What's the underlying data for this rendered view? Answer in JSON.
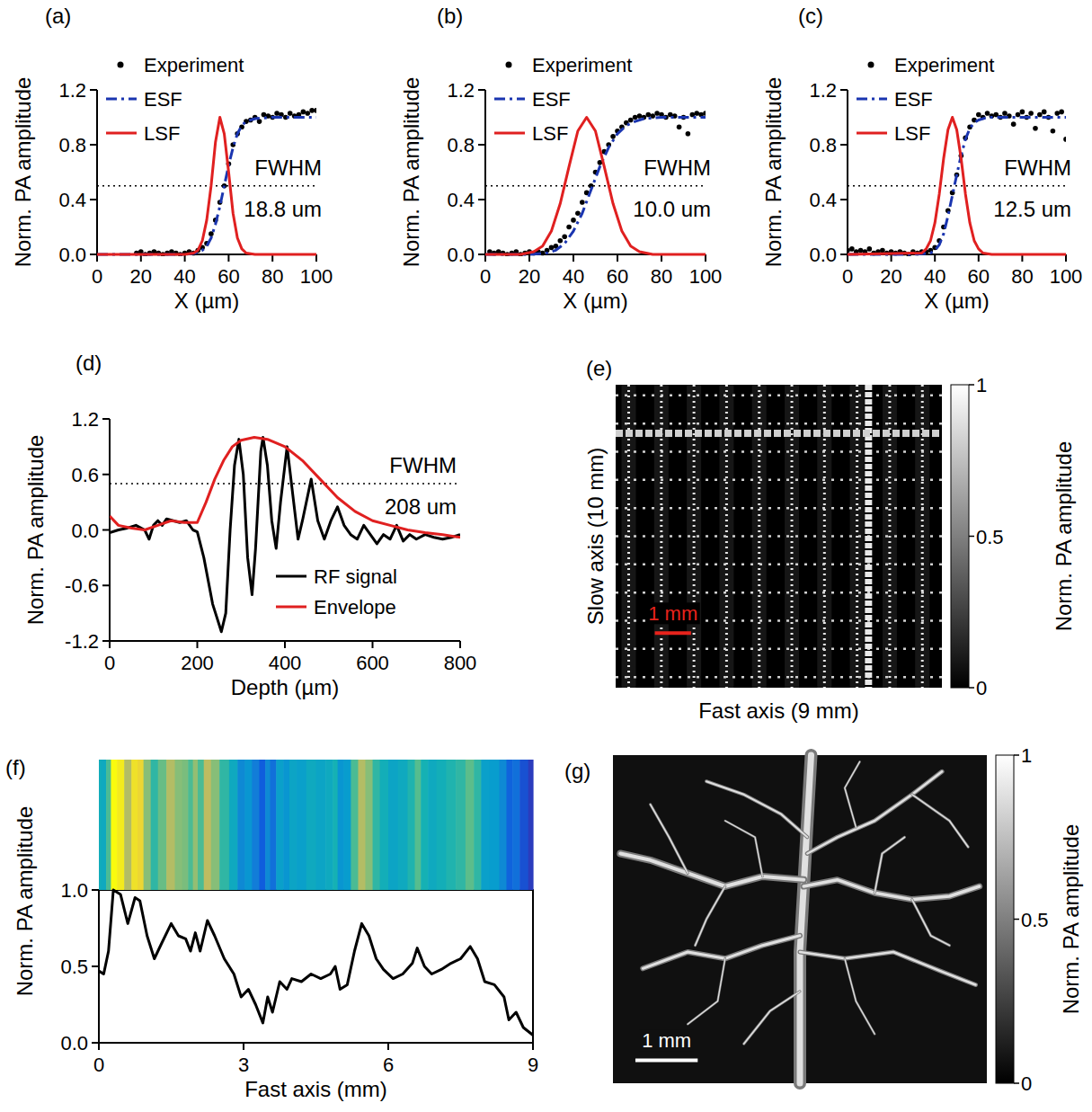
{
  "chart_data": [
    {
      "panel": "(a)",
      "type": "line",
      "x_label": "X (µm)",
      "y_label": "Norm. PA amplitude",
      "xlim": [
        0,
        100
      ],
      "xticks": [
        0,
        20,
        40,
        60,
        80,
        100
      ],
      "ylim": [
        0,
        1.2
      ],
      "yticks": [
        {
          "value": 0,
          "label": "0.0"
        },
        0.4,
        0.8,
        1.2
      ],
      "legend": "upper left",
      "reference_line": 0.5,
      "annotations": [
        "FWHM",
        "18.8 um"
      ],
      "series": [
        {
          "name": "Experiment",
          "type": "scatter",
          "marker": "dot",
          "color": "#000000",
          "x": [
            18,
            20,
            22,
            24,
            26,
            28,
            30,
            32,
            34,
            36,
            38,
            40,
            42,
            44,
            46,
            48,
            50,
            52,
            54,
            56,
            58,
            60,
            62,
            64,
            66,
            68,
            70,
            72,
            74,
            76,
            78,
            80,
            82,
            84,
            86,
            88,
            90,
            92,
            94,
            96,
            98,
            100
          ],
          "values": [
            0.01,
            0.02,
            0.0,
            0.01,
            0.02,
            0.01,
            0.0,
            0.01,
            0.02,
            0.01,
            0.0,
            0.01,
            0.02,
            0.01,
            0.03,
            0.05,
            0.08,
            0.15,
            0.25,
            0.38,
            0.5,
            0.66,
            0.8,
            0.88,
            0.93,
            0.97,
            0.98,
            1.0,
            0.97,
            1.02,
            1.01,
            1.0,
            1.03,
            1.02,
            1.0,
            1.03,
            1.01,
            1.02,
            1.04,
            1.03,
            1.05,
            1.05
          ]
        },
        {
          "name": "ESF",
          "type": "line",
          "line_style": "dashdot",
          "color": "#1a35b0",
          "x": [
            0,
            20,
            40,
            45,
            48,
            50,
            52,
            54,
            56,
            58,
            60,
            62,
            64,
            66,
            68,
            72,
            80,
            100
          ],
          "values": [
            0,
            0,
            0,
            0.01,
            0.03,
            0.06,
            0.12,
            0.22,
            0.35,
            0.5,
            0.65,
            0.78,
            0.88,
            0.94,
            0.97,
            0.99,
            1.0,
            1.0
          ]
        },
        {
          "name": "LSF",
          "type": "line",
          "line_style": "solid",
          "color": "#e02020",
          "x": [
            0,
            40,
            44,
            46,
            48,
            50,
            52,
            54,
            56,
            58,
            60,
            62,
            64,
            66,
            68,
            72,
            100
          ],
          "values": [
            0,
            0,
            0.01,
            0.03,
            0.1,
            0.25,
            0.5,
            0.82,
            1.0,
            0.88,
            0.6,
            0.3,
            0.12,
            0.04,
            0.01,
            0,
            0
          ]
        }
      ]
    },
    {
      "panel": "(b)",
      "type": "line",
      "x_label": "X (µm)",
      "y_label": "Norm. PA amplitude",
      "xlim": [
        0,
        100
      ],
      "xticks": [
        0,
        20,
        40,
        60,
        80,
        100
      ],
      "ylim": [
        0,
        1.2
      ],
      "yticks": [
        {
          "value": 0,
          "label": "0.0"
        },
        0.4,
        0.8,
        1.2
      ],
      "legend": "upper left",
      "reference_line": 0.5,
      "annotations": [
        "FWHM",
        "10.0 um"
      ],
      "series": [
        {
          "name": "Experiment",
          "type": "scatter",
          "marker": "dot",
          "color": "#000000",
          "x": [
            2,
            4,
            6,
            8,
            10,
            12,
            14,
            16,
            18,
            20,
            22,
            24,
            26,
            28,
            30,
            32,
            34,
            36,
            38,
            40,
            42,
            44,
            46,
            48,
            50,
            52,
            54,
            56,
            58,
            60,
            62,
            64,
            66,
            68,
            70,
            72,
            74,
            76,
            78,
            80,
            82,
            84,
            86,
            88,
            90,
            92,
            94,
            96,
            98,
            100
          ],
          "values": [
            0.02,
            0.01,
            0.02,
            0.01,
            0.0,
            0.01,
            0.02,
            0.0,
            0.01,
            0.02,
            0.01,
            0.02,
            0.01,
            0.03,
            0.05,
            0.06,
            0.1,
            0.13,
            0.2,
            0.25,
            0.3,
            0.38,
            0.45,
            0.5,
            0.6,
            0.67,
            0.75,
            0.8,
            0.86,
            0.9,
            0.93,
            0.96,
            0.98,
            1.0,
            1.01,
            1.0,
            1.02,
            1.01,
            1.03,
            1.02,
            1.0,
            1.02,
            1.01,
            0.93,
            1.0,
            0.88,
            1.02,
            1.03,
            1.02,
            1.03
          ]
        },
        {
          "name": "ESF",
          "type": "line",
          "line_style": "dashdot",
          "color": "#1a35b0",
          "x": [
            0,
            20,
            28,
            32,
            36,
            40,
            44,
            48,
            52,
            56,
            60,
            64,
            68,
            72,
            80,
            100
          ],
          "values": [
            0,
            0,
            0.01,
            0.03,
            0.08,
            0.17,
            0.3,
            0.47,
            0.64,
            0.78,
            0.88,
            0.94,
            0.97,
            0.99,
            1.0,
            1.0
          ]
        },
        {
          "name": "LSF",
          "type": "line",
          "line_style": "solid",
          "color": "#e02020",
          "x": [
            0,
            16,
            22,
            26,
            30,
            34,
            38,
            42,
            46,
            50,
            54,
            58,
            62,
            66,
            70,
            76,
            100
          ],
          "values": [
            0,
            0,
            0.02,
            0.06,
            0.17,
            0.37,
            0.64,
            0.9,
            1.0,
            0.9,
            0.64,
            0.37,
            0.17,
            0.06,
            0.02,
            0,
            0
          ]
        }
      ]
    },
    {
      "panel": "(c)",
      "type": "line",
      "x_label": "X (µm)",
      "y_label": "Norm. PA amplitude",
      "xlim": [
        0,
        100
      ],
      "xticks": [
        0,
        20,
        40,
        60,
        80,
        100
      ],
      "ylim": [
        0,
        1.2
      ],
      "yticks": [
        {
          "value": 0,
          "label": "0.0"
        },
        0.4,
        0.8,
        1.2
      ],
      "legend": "upper left",
      "reference_line": 0.5,
      "annotations": [
        "FWHM",
        "12.5 um"
      ],
      "series": [
        {
          "name": "Experiment",
          "type": "scatter",
          "marker": "dot",
          "color": "#000000",
          "x": [
            0,
            2,
            4,
            6,
            8,
            10,
            12,
            14,
            16,
            18,
            20,
            22,
            24,
            26,
            28,
            30,
            32,
            34,
            36,
            38,
            40,
            42,
            44,
            46,
            48,
            50,
            52,
            54,
            56,
            58,
            60,
            62,
            64,
            66,
            68,
            70,
            72,
            74,
            76,
            78,
            80,
            82,
            84,
            86,
            88,
            90,
            92,
            94,
            96,
            98,
            100
          ],
          "values": [
            0.03,
            0.04,
            0.02,
            0.03,
            0.02,
            0.04,
            0.01,
            0.02,
            0.03,
            0.01,
            0.02,
            0.01,
            0.02,
            0.01,
            0.0,
            0.02,
            0.01,
            0.02,
            0.02,
            0.03,
            0.05,
            0.1,
            0.2,
            0.32,
            0.45,
            0.58,
            0.72,
            0.85,
            0.93,
            0.98,
            1.02,
            1.0,
            1.03,
            1.01,
            1.02,
            1.0,
            1.03,
            1.01,
            0.95,
            1.02,
            1.04,
            1.0,
            1.03,
            0.92,
            1.02,
            1.04,
            1.0,
            0.9,
            1.03,
            1.04,
            0.84
          ]
        },
        {
          "name": "ESF",
          "type": "line",
          "line_style": "dashdot",
          "color": "#1a35b0",
          "x": [
            0,
            30,
            38,
            40,
            42,
            44,
            46,
            48,
            50,
            52,
            54,
            56,
            58,
            60,
            64,
            70,
            100
          ],
          "values": [
            0,
            0,
            0.01,
            0.03,
            0.07,
            0.15,
            0.28,
            0.43,
            0.58,
            0.72,
            0.84,
            0.92,
            0.96,
            0.98,
            1.0,
            1.0,
            1.0
          ]
        },
        {
          "name": "LSF",
          "type": "line",
          "line_style": "solid",
          "color": "#e02020",
          "x": [
            0,
            34,
            36,
            38,
            40,
            42,
            44,
            46,
            48,
            50,
            52,
            54,
            56,
            58,
            60,
            62,
            66,
            100
          ],
          "values": [
            0,
            0.01,
            0.04,
            0.1,
            0.23,
            0.44,
            0.7,
            0.91,
            1.0,
            0.91,
            0.7,
            0.44,
            0.23,
            0.1,
            0.04,
            0.01,
            0,
            0
          ]
        }
      ]
    },
    {
      "panel": "(d)",
      "type": "line",
      "x_label": "Depth (µm)",
      "y_label": "Norm. PA amplitude",
      "xlim": [
        0,
        800
      ],
      "xticks": [
        0,
        200,
        400,
        600,
        800
      ],
      "ylim": [
        -1.2,
        1.2
      ],
      "yticks": [
        -1.2,
        -0.6,
        {
          "value": 0,
          "label": "0.0"
        },
        0.6,
        1.2
      ],
      "legend": "lower right",
      "reference_line": 0.5,
      "annotations": [
        "FWHM",
        "208 um"
      ],
      "series": [
        {
          "name": "RF signal",
          "type": "line",
          "line_style": "solid",
          "color": "#000000",
          "x": [
            0,
            20,
            40,
            60,
            80,
            90,
            100,
            110,
            120,
            130,
            145,
            160,
            175,
            190,
            200,
            215,
            235,
            255,
            265,
            275,
            285,
            295,
            305,
            315,
            325,
            333,
            345,
            350,
            360,
            370,
            380,
            390,
            405,
            420,
            430,
            440,
            460,
            475,
            490,
            505,
            520,
            535,
            550,
            565,
            580,
            595,
            610,
            625,
            640,
            655,
            670,
            685,
            700,
            720,
            740,
            760,
            780,
            800
          ],
          "values": [
            -0.03,
            0.0,
            0.02,
            0.05,
            0.0,
            -0.1,
            0.05,
            0.1,
            0.05,
            0.12,
            0.1,
            0.08,
            0.1,
            0.0,
            -0.02,
            -0.3,
            -0.8,
            -1.1,
            -0.9,
            0.0,
            0.7,
            0.98,
            0.6,
            -0.3,
            -0.7,
            -0.2,
            0.85,
            1.0,
            0.7,
            0.1,
            -0.2,
            0.3,
            0.9,
            0.3,
            -0.1,
            0.1,
            0.55,
            0.1,
            -0.1,
            0.1,
            0.25,
            0.05,
            -0.05,
            -0.1,
            0.05,
            -0.05,
            -0.15,
            -0.05,
            -0.1,
            0.05,
            -0.12,
            -0.05,
            -0.1,
            -0.05,
            -0.08,
            -0.1,
            -0.08,
            -0.05
          ]
        },
        {
          "name": "Envelope",
          "type": "line",
          "line_style": "solid",
          "color": "#e02020",
          "x": [
            0,
            20,
            50,
            80,
            110,
            140,
            170,
            200,
            220,
            240,
            260,
            280,
            300,
            330,
            360,
            400,
            440,
            480,
            520,
            560,
            600,
            640,
            680,
            720,
            760,
            800
          ],
          "values": [
            0.15,
            0.05,
            0.02,
            0.0,
            0.05,
            0.1,
            0.08,
            0.08,
            0.3,
            0.55,
            0.75,
            0.9,
            0.97,
            1.0,
            0.98,
            0.9,
            0.75,
            0.55,
            0.35,
            0.2,
            0.1,
            0.05,
            0.0,
            -0.03,
            -0.05,
            -0.08
          ]
        }
      ]
    },
    {
      "panel": "(e)",
      "type": "image",
      "x_label": "Fast axis (9 mm)",
      "y_label": "Slow axis (10 mm)",
      "xlim": [
        0,
        9
      ],
      "scale_bar": {
        "value": 1,
        "label": "1 mm",
        "color": "#e8231c"
      },
      "colorbar": {
        "label": "Norm. PA amplitude",
        "range": [
          0,
          1
        ],
        "ticks": [
          0,
          0.5,
          1
        ]
      }
    },
    {
      "panel": "(f)",
      "type": "profile",
      "x_label": "Fast axis (mm)",
      "y_label": "Norm. PA amplitude",
      "xlim": [
        0,
        9
      ],
      "xticks": [
        0,
        3,
        6,
        9
      ],
      "ylim": [
        0,
        1
      ],
      "yticks": [
        {
          "value": 0,
          "label": "0.0"
        },
        0.5,
        {
          "value": 1,
          "label": "1.0"
        }
      ],
      "series": [
        {
          "type": "line",
          "color": "#000000",
          "x": [
            0,
            0.1,
            0.2,
            0.3,
            0.45,
            0.6,
            0.75,
            0.85,
            1.0,
            1.15,
            1.3,
            1.5,
            1.65,
            1.8,
            1.9,
            2.0,
            2.1,
            2.25,
            2.4,
            2.6,
            2.8,
            2.95,
            3.1,
            3.25,
            3.4,
            3.5,
            3.6,
            3.75,
            3.9,
            4.0,
            4.2,
            4.4,
            4.6,
            4.8,
            4.9,
            5.0,
            5.15,
            5.3,
            5.45,
            5.6,
            5.75,
            5.9,
            6.1,
            6.3,
            6.5,
            6.6,
            6.75,
            6.9,
            7.1,
            7.3,
            7.5,
            7.7,
            7.85,
            8.0,
            8.2,
            8.4,
            8.5,
            8.65,
            8.8,
            9.0
          ],
          "values": [
            0.47,
            0.45,
            0.6,
            1.0,
            0.97,
            0.78,
            0.95,
            0.93,
            0.7,
            0.55,
            0.65,
            0.78,
            0.7,
            0.68,
            0.6,
            0.72,
            0.6,
            0.8,
            0.7,
            0.55,
            0.45,
            0.3,
            0.35,
            0.25,
            0.13,
            0.3,
            0.2,
            0.4,
            0.35,
            0.42,
            0.4,
            0.45,
            0.42,
            0.45,
            0.5,
            0.35,
            0.38,
            0.6,
            0.78,
            0.7,
            0.55,
            0.48,
            0.42,
            0.45,
            0.52,
            0.62,
            0.5,
            0.45,
            0.48,
            0.52,
            0.55,
            0.63,
            0.55,
            0.4,
            0.38,
            0.3,
            0.15,
            0.2,
            0.1,
            0.05
          ]
        }
      ]
    },
    {
      "panel": "(g)",
      "type": "image",
      "xlim": [
        0,
        6
      ],
      "scale_bar": {
        "value": 1,
        "label": "1 mm",
        "color": "#ffffff"
      },
      "colorbar": {
        "label": "Norm. PA amplitude",
        "range": [
          0,
          1
        ],
        "ticks": [
          0,
          0.5,
          1
        ]
      }
    }
  ]
}
